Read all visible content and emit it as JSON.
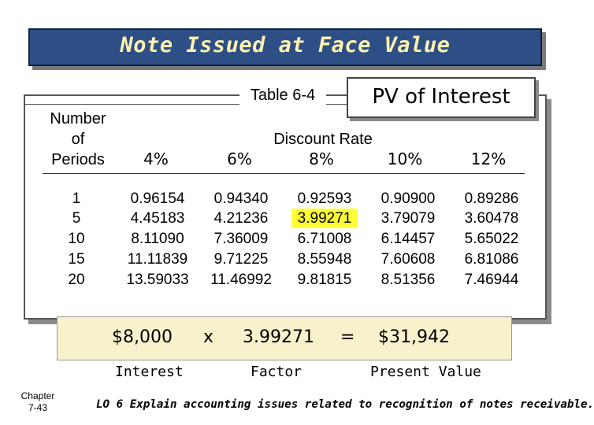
{
  "title": "Note Issued at Face Value",
  "table": {
    "caption": "Table 6-4",
    "pv_label": "PV of Interest",
    "periods_header": [
      "Number",
      "of",
      "Periods"
    ],
    "discount_rate_header": "Discount Rate",
    "rates": [
      "4%",
      "6%",
      "8%",
      "10%",
      "12%"
    ],
    "rows": [
      {
        "period": "1",
        "values": [
          "0.96154",
          "0.94340",
          "0.92593",
          "0.90900",
          "0.89286"
        ]
      },
      {
        "period": "5",
        "values": [
          "4.45183",
          "4.21236",
          "3.99271",
          "3.79079",
          "3.60478"
        ]
      },
      {
        "period": "10",
        "values": [
          "8.11090",
          "7.36009",
          "6.71008",
          "6.14457",
          "5.65022"
        ]
      },
      {
        "period": "15",
        "values": [
          "11.11839",
          "9.71225",
          "8.55948",
          "7.60608",
          "6.81086"
        ]
      },
      {
        "period": "20",
        "values": [
          "13.59033",
          "11.46992",
          "9.81815",
          "8.51356",
          "7.46944"
        ]
      }
    ],
    "highlight_color": "#ffff33"
  },
  "formula": {
    "amount": "$8,000",
    "times": "x",
    "factor": "3.99271",
    "equals": "=",
    "result": "$31,942",
    "amount_label": "Interest",
    "factor_label": "Factor",
    "result_label": "Present Value"
  },
  "footer": {
    "chapter_line1": "Chapter",
    "chapter_line2": "7-43",
    "lo_text": "LO 6 Explain accounting issues related to recognition of notes receivable."
  },
  "colors": {
    "title_bar": "#2e4f86",
    "title_text": "#fff3b0",
    "formula_bg": "#f7f1cc"
  }
}
